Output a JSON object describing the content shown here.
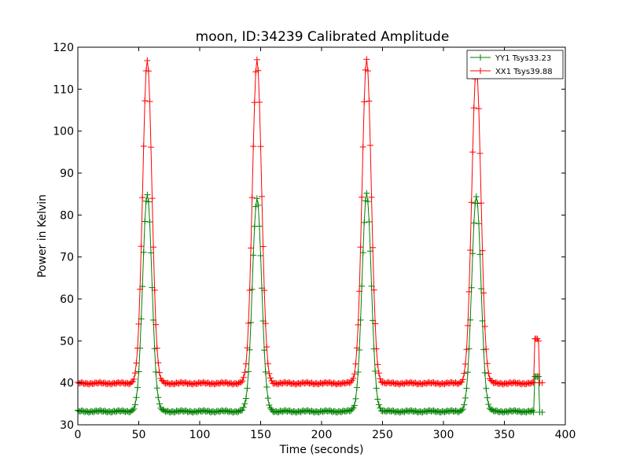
{
  "chart_data": {
    "type": "line",
    "title": "moon, ID:34239 Calibrated Amplitude",
    "xlabel": "Time (seconds)",
    "ylabel": "Power in Kelvin",
    "xlim": [
      0,
      400
    ],
    "ylim": [
      30,
      120
    ],
    "xticks": [
      0,
      50,
      100,
      150,
      200,
      250,
      300,
      350,
      400
    ],
    "yticks": [
      30,
      40,
      50,
      60,
      70,
      80,
      90,
      100,
      110,
      120
    ],
    "grid": false,
    "legend_position": "top-right",
    "series": [
      {
        "name": "YY1 Tsys33.23",
        "color": "#008000",
        "marker": "+",
        "baseline": 33.2,
        "peaks": [
          {
            "x": 57,
            "y": 85
          },
          {
            "x": 147,
            "y": 84
          },
          {
            "x": 237,
            "y": 85
          },
          {
            "x": 327,
            "y": 84.5
          }
        ],
        "tail": [
          {
            "x": 374,
            "y": 33
          },
          {
            "x": 375,
            "y": 41.5
          },
          {
            "x": 376,
            "y": 41.5
          },
          {
            "x": 377,
            "y": 41.5
          },
          {
            "x": 378,
            "y": 41.5
          },
          {
            "x": 379,
            "y": 33
          },
          {
            "x": 381,
            "y": 33
          }
        ]
      },
      {
        "name": "XX1 Tsys39.88",
        "color": "#ff0000",
        "marker": "+",
        "baseline": 39.9,
        "peaks": [
          {
            "x": 57,
            "y": 117
          },
          {
            "x": 147,
            "y": 117
          },
          {
            "x": 237,
            "y": 117
          },
          {
            "x": 327,
            "y": 115
          }
        ],
        "tail": [
          {
            "x": 374,
            "y": 40
          },
          {
            "x": 375,
            "y": 50.5
          },
          {
            "x": 376,
            "y": 50.5
          },
          {
            "x": 377,
            "y": 50.5
          },
          {
            "x": 378,
            "y": 50
          },
          {
            "x": 379,
            "y": 40
          },
          {
            "x": 381,
            "y": 40
          }
        ]
      }
    ]
  }
}
